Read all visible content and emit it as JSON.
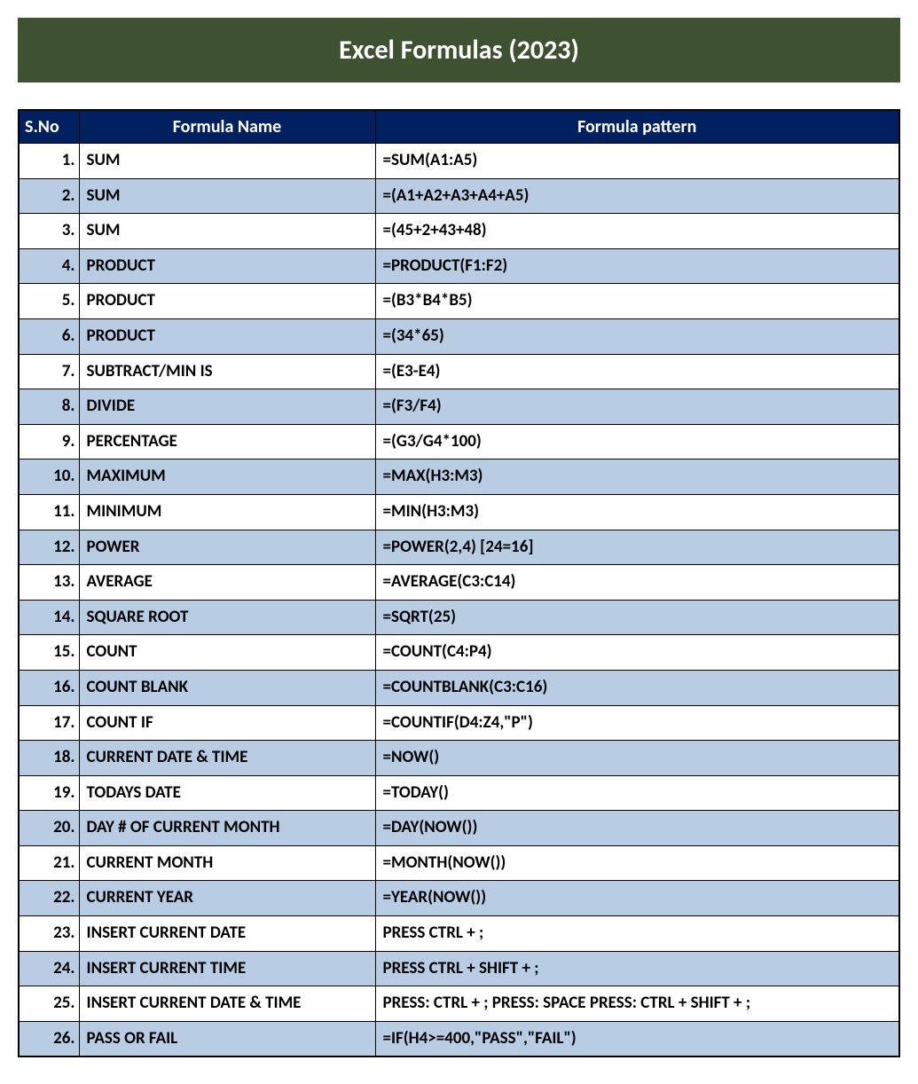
{
  "title": "Excel Formulas (2023)",
  "table": {
    "columns": [
      "S.No",
      "Formula Name",
      "Formula pattern"
    ],
    "header_bg": "#002060",
    "header_fg": "#ffffff",
    "row_odd_bg": "#ffffff",
    "row_even_bg": "#b8cce4",
    "border_color": "#000000",
    "font_size_header": 20,
    "font_size_body": 19,
    "rows": [
      {
        "sno": "1.",
        "name": "SUM",
        "pattern": "=SUM(A1:A5)"
      },
      {
        "sno": "2.",
        "name": "SUM",
        "pattern": "=(A1+A2+A3+A4+A5)"
      },
      {
        "sno": "3.",
        "name": "SUM",
        "pattern": "=(45+2+43+48)"
      },
      {
        "sno": "4.",
        "name": "PRODUCT",
        "pattern": "=PRODUCT(F1:F2)"
      },
      {
        "sno": "5.",
        "name": "PRODUCT",
        "pattern": "=(B3*B4*B5)"
      },
      {
        "sno": "6.",
        "name": "PRODUCT",
        "pattern": "=(34*65)"
      },
      {
        "sno": "7.",
        "name": "SUBTRACT/MIN IS",
        "pattern": "=(E3-E4)"
      },
      {
        "sno": "8.",
        "name": "DIVIDE",
        "pattern": "=(F3/F4)"
      },
      {
        "sno": "9.",
        "name": "PERCENTAGE",
        "pattern": "=(G3/G4*100)"
      },
      {
        "sno": "10.",
        "name": "MAXIMUM",
        "pattern": "=MAX(H3:M3)"
      },
      {
        "sno": "11.",
        "name": "MINIMUM",
        "pattern": "=MIN(H3:M3)"
      },
      {
        "sno": "12.",
        "name": "POWER",
        "pattern": "=POWER(2,4) [24=16]"
      },
      {
        "sno": "13.",
        "name": "AVERAGE",
        "pattern": "=AVERAGE(C3:C14)"
      },
      {
        "sno": "14.",
        "name": "SQUARE ROOT",
        "pattern": "=SQRT(25)"
      },
      {
        "sno": "15.",
        "name": "COUNT",
        "pattern": "=COUNT(C4:P4)"
      },
      {
        "sno": "16.",
        "name": "COUNT BLANK",
        "pattern": "=COUNTBLANK(C3:C16)"
      },
      {
        "sno": "17.",
        "name": "COUNT IF",
        "pattern": "=COUNTIF(D4:Z4,\"P\")"
      },
      {
        "sno": "18.",
        "name": "CURRENT DATE & TIME",
        "pattern": "=NOW()"
      },
      {
        "sno": "19.",
        "name": "TODAYS DATE",
        "pattern": "=TODAY()"
      },
      {
        "sno": "20.",
        "name": "DAY # OF CURRENT MONTH",
        "pattern": "=DAY(NOW())"
      },
      {
        "sno": "21.",
        "name": "CURRENT MONTH",
        "pattern": "=MONTH(NOW())"
      },
      {
        "sno": "22.",
        "name": "CURRENT YEAR",
        "pattern": "=YEAR(NOW())"
      },
      {
        "sno": "23.",
        "name": "INSERT CURRENT DATE",
        "pattern": "PRESS CTRL + ;"
      },
      {
        "sno": "24.",
        "name": "INSERT CURRENT TIME",
        "pattern": "PRESS CTRL + SHIFT + ;"
      },
      {
        "sno": "25.",
        "name": "INSERT CURRENT DATE & TIME",
        "pattern": "PRESS:  CTRL + ;  PRESS:  SPACE  PRESS:  CTRL + SHIFT + ;"
      },
      {
        "sno": "26.",
        "name": "PASS OR FAIL",
        "pattern": "=IF(H4>=400,\"PASS\",\"FAIL\")"
      }
    ]
  },
  "title_banner": {
    "bg": "#3e5231",
    "fg": "#ffffff",
    "font_size": 30
  }
}
